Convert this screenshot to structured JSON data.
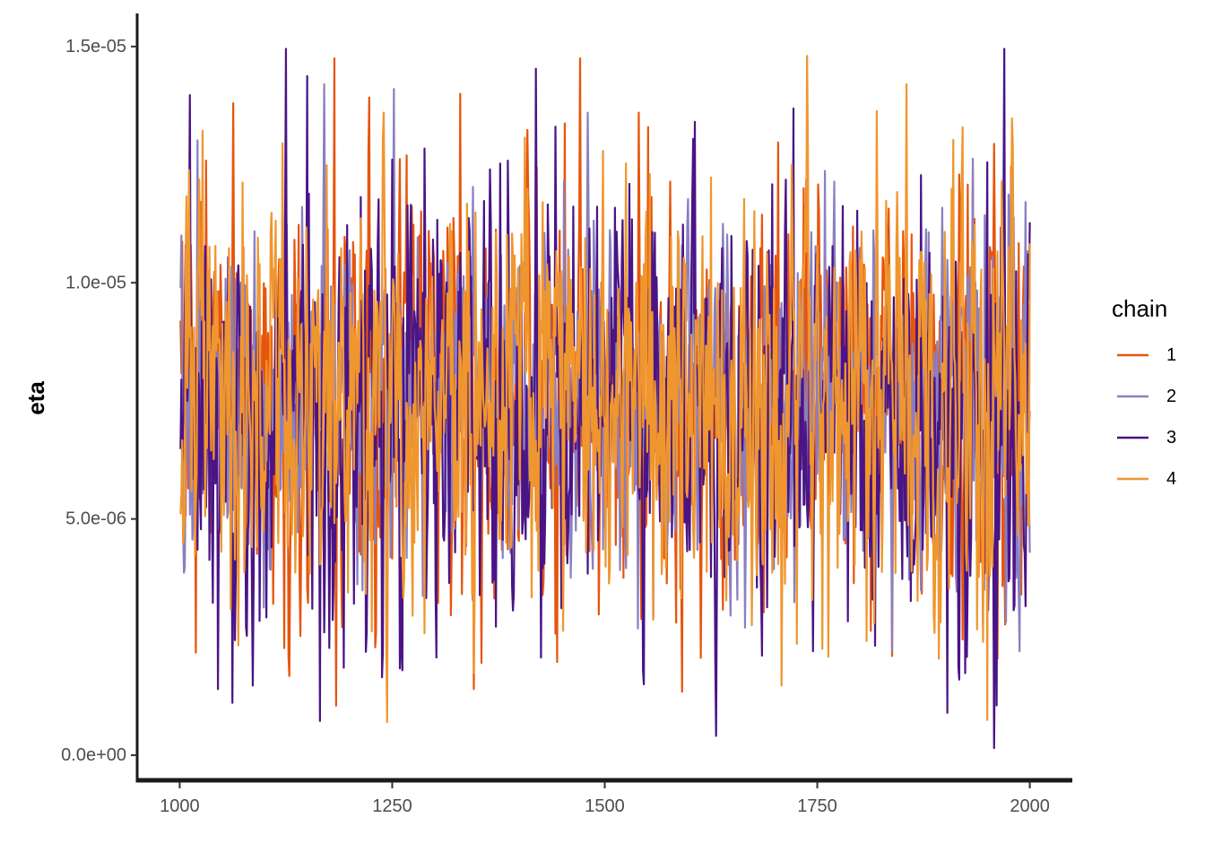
{
  "chart_data": {
    "type": "line",
    "title": "",
    "xlabel": "",
    "ylabel": "eta",
    "xlim": [
      950,
      2050
    ],
    "ylim": [
      -5.5e-07,
      1.57e-05
    ],
    "x_ticks": [
      1000,
      1250,
      1500,
      1750,
      2000
    ],
    "x_tick_labels": [
      "1000",
      "1250",
      "1500",
      "1750",
      "2000"
    ],
    "y_ticks": [
      0,
      5e-06,
      1e-05,
      1.5e-05
    ],
    "y_tick_labels": [
      "0.0e+00",
      "5.0e-06",
      "1.0e-05",
      "1.5e-05"
    ],
    "grid": false,
    "legend": {
      "title": "chain",
      "position": "right"
    },
    "series": [
      {
        "name": "1",
        "color": "#E6550D",
        "x_start": 1001,
        "x_end": 2000,
        "n": 1000,
        "summary": {
          "mean": 7.4e-06,
          "min": 1.05e-06,
          "max": 1.475e-05
        },
        "notable_points": [
          {
            "x": 1063,
            "y": 1.38e-05
          },
          {
            "x": 1170,
            "y": 1.2e-05
          },
          {
            "x": 1182,
            "y": 1.475e-05
          },
          {
            "x": 1184,
            "y": 1.05e-06
          },
          {
            "x": 1330,
            "y": 1.4e-05
          },
          {
            "x": 1346,
            "y": 1.4e-06
          },
          {
            "x": 1540,
            "y": 1.36e-05
          },
          {
            "x": 1838,
            "y": 2.1e-06
          },
          {
            "x": 1990,
            "y": 3.4e-06
          }
        ]
      },
      {
        "name": "2",
        "color": "#8A7FC1",
        "x_start": 1001,
        "x_end": 2000,
        "n": 1000,
        "summary": {
          "mean": 7.4e-06,
          "min": 2.2e-06,
          "max": 1.42e-05
        },
        "notable_points": [
          {
            "x": 1002,
            "y": 1.1e-05
          },
          {
            "x": 1170,
            "y": 1.42e-05
          },
          {
            "x": 1252,
            "y": 1.41e-05
          },
          {
            "x": 1480,
            "y": 1.36e-05
          },
          {
            "x": 1665,
            "y": 2.7e-06
          },
          {
            "x": 1838,
            "y": 2.2e-06
          }
        ]
      },
      {
        "name": "3",
        "color": "#4A1486",
        "x_start": 1001,
        "x_end": 2000,
        "n": 1000,
        "summary": {
          "mean": 7.4e-06,
          "min": 1.5e-07,
          "max": 1.495e-05
        },
        "notable_points": [
          {
            "x": 1125,
            "y": 1.495e-05
          },
          {
            "x": 1170,
            "y": 2.6e-06
          },
          {
            "x": 1365,
            "y": 1.24e-05
          },
          {
            "x": 1745,
            "y": 2.2e-06
          },
          {
            "x": 1958,
            "y": 1.5e-07
          },
          {
            "x": 1998,
            "y": 1.06e-05
          }
        ]
      },
      {
        "name": "4",
        "color": "#F0962E",
        "x_start": 1001,
        "x_end": 2000,
        "n": 1000,
        "summary": {
          "mean": 7.5e-06,
          "min": 7e-07,
          "max": 1.48e-05
        },
        "notable_points": [
          {
            "x": 1244,
            "y": 7e-07
          },
          {
            "x": 1240,
            "y": 1.36e-05
          },
          {
            "x": 1738,
            "y": 1.48e-05
          },
          {
            "x": 1855,
            "y": 1.42e-05
          },
          {
            "x": 1945,
            "y": 2.4e-06
          }
        ]
      }
    ]
  }
}
